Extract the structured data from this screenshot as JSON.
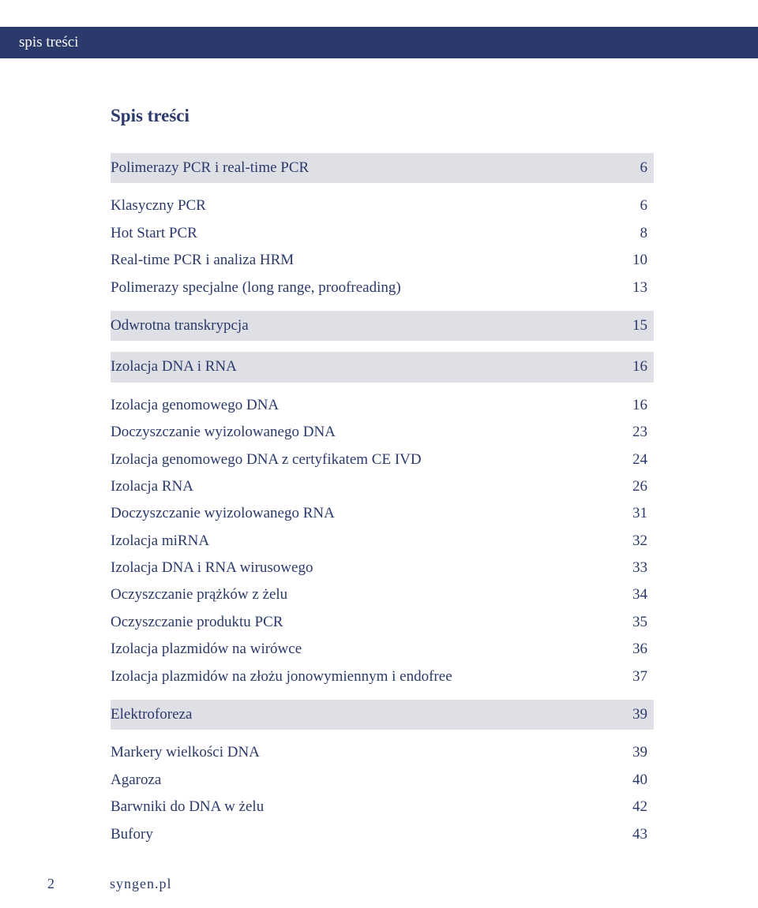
{
  "header": {
    "tab_label": "spis treści"
  },
  "title": "Spis treści",
  "colors": {
    "brand_navy": "#2b3a6b",
    "section_bg": "#dfe0e6",
    "page_bg": "#ffffff"
  },
  "typography": {
    "body_fontsize_pt": 14,
    "title_fontsize_pt": 17,
    "title_weight": "bold",
    "family": "serif"
  },
  "sections": [
    {
      "label": "Polimerazy PCR i real-time PCR",
      "page": "6"
    },
    {
      "label": "Odwrotna transkrypcja",
      "page": "15"
    },
    {
      "label": "Izolacja DNA i RNA",
      "page": "16"
    },
    {
      "label": "Elektroforeza",
      "page": "39"
    }
  ],
  "groups": {
    "g1": [
      {
        "label": "Klasyczny PCR",
        "page": "6"
      },
      {
        "label": "Hot Start PCR",
        "page": "8"
      },
      {
        "label": "Real-time PCR i analiza HRM",
        "page": "10"
      },
      {
        "label": "Polimerazy specjalne (long range, proofreading)",
        "page": "13"
      }
    ],
    "g2": [
      {
        "label": "Izolacja genomowego DNA",
        "page": "16"
      },
      {
        "label": "Doczyszczanie wyizolowanego DNA",
        "page": "23"
      },
      {
        "label": "Izolacja genomowego DNA z certyfikatem CE IVD",
        "page": "24"
      },
      {
        "label": "Izolacja RNA",
        "page": "26"
      },
      {
        "label": "Doczyszczanie wyizolowanego RNA",
        "page": "31"
      },
      {
        "label": "Izolacja miRNA",
        "page": "32"
      },
      {
        "label": "Izolacja DNA i RNA wirusowego",
        "page": "33"
      },
      {
        "label": "Oczyszczanie prążków z żelu",
        "page": "34"
      },
      {
        "label": "Oczyszczanie produktu PCR",
        "page": "35"
      },
      {
        "label": "Izolacja plazmidów na wirówce",
        "page": "36"
      },
      {
        "label": "Izolacja plazmidów na złożu jonowymiennym i endofree",
        "page": "37"
      }
    ],
    "g3": [
      {
        "label": "Markery wielkości DNA",
        "page": "39"
      },
      {
        "label": "Agaroza",
        "page": "40"
      },
      {
        "label": "Barwniki do DNA w żelu",
        "page": "42"
      },
      {
        "label": "Bufory",
        "page": "43"
      }
    ]
  },
  "footer": {
    "page_number": "2",
    "site": "syngen.pl"
  }
}
